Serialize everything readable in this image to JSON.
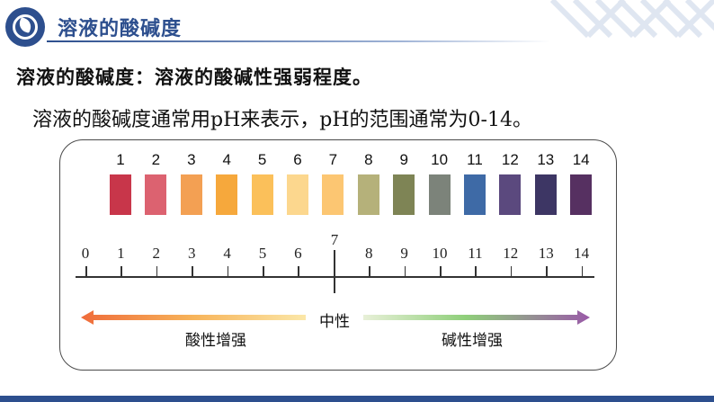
{
  "header": {
    "title": "溶液的酸碱度",
    "logo_icon": "wave-circle-icon",
    "accent": "#2d4f8e"
  },
  "definition": "溶液的酸碱度：溶液的酸碱性强弱程度。",
  "sentence": "溶液的酸碱度通常用pH来表示，pH的范围通常为0-14。",
  "color_chart": {
    "numbers": [
      "1",
      "2",
      "3",
      "4",
      "5",
      "6",
      "7",
      "8",
      "9",
      "10",
      "11",
      "12",
      "13",
      "14"
    ],
    "colors": [
      "#c8364a",
      "#dc6270",
      "#f3a053",
      "#f6a83c",
      "#fbc05a",
      "#fcd78e",
      "#fcc672",
      "#b5b17a",
      "#7e8455",
      "#7c837a",
      "#3e6aa6",
      "#5b497e",
      "#3d3664",
      "#563061"
    ]
  },
  "scale": {
    "labels": [
      "0",
      "1",
      "2",
      "3",
      "4",
      "5",
      "6",
      "7",
      "8",
      "9",
      "10",
      "11",
      "12",
      "13",
      "14"
    ]
  },
  "neutral_label": "中性",
  "acid_label": "酸性增强",
  "base_label": "碱性增强"
}
